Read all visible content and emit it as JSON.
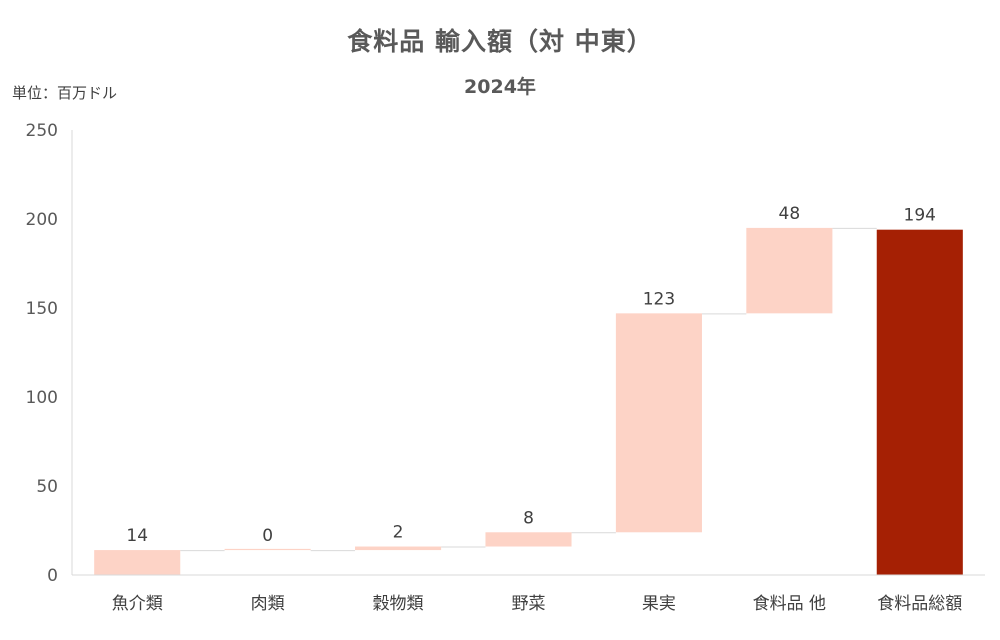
{
  "chart_data": {
    "type": "bar",
    "subtype": "waterfall",
    "title": "食料品 輸入額（対 中東）",
    "subtitle": "2024年",
    "unit_label": "単位：百万ドル",
    "categories": [
      "魚介類",
      "肉類",
      "穀物類",
      "野菜",
      "果実",
      "食料品 他",
      "食料品総額"
    ],
    "values": [
      14,
      0,
      2,
      8,
      123,
      48,
      194
    ],
    "data_labels": [
      "14",
      "0",
      "2",
      "8",
      "123",
      "48",
      "194"
    ],
    "total_index": 6,
    "ylim": [
      0,
      250
    ],
    "yticks": [
      0,
      50,
      100,
      150,
      200,
      250
    ],
    "ytick_labels": [
      "0",
      "50",
      "100",
      "150",
      "200",
      "250"
    ],
    "grid": false,
    "colors": {
      "increment": "#FDD3C6",
      "total": "#A52004",
      "connector": "#D9D9D9",
      "axis": "#D9D9D9"
    }
  }
}
